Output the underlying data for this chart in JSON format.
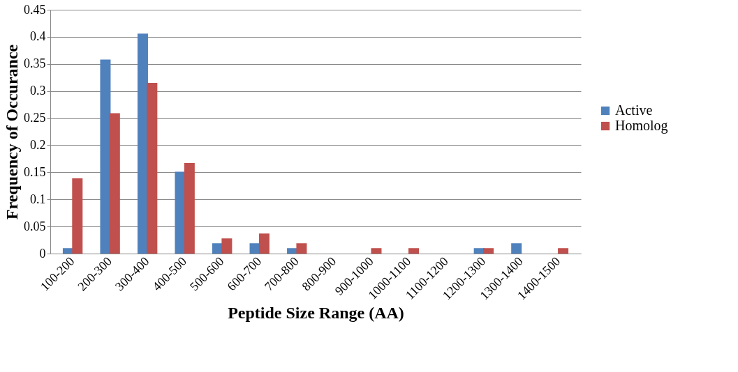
{
  "chart_data": {
    "type": "bar",
    "xlabel": "Peptide Size Range (AA)",
    "ylabel": "Frequency of Occurance",
    "categories": [
      "100-200",
      "200-300",
      "300-400",
      "400-500",
      "500-600",
      "600-700",
      "700-800",
      "800-900",
      "900-1000",
      "1000-1100",
      "1100-1200",
      "1200-1300",
      "1300-1400",
      "1400-1500"
    ],
    "series": [
      {
        "name": "Active",
        "color": "#4f81bd",
        "values": [
          0.01,
          0.358,
          0.406,
          0.151,
          0.019,
          0.019,
          0.01,
          0,
          0,
          0,
          0,
          0.01,
          0.019,
          0
        ]
      },
      {
        "name": "Homolog",
        "color": "#c0504d",
        "values": [
          0.139,
          0.259,
          0.315,
          0.167,
          0.028,
          0.037,
          0.019,
          0,
          0.01,
          0.01,
          0,
          0.01,
          0,
          0.01
        ]
      }
    ],
    "ylim": [
      0,
      0.45
    ],
    "yticks": [
      0,
      0.05,
      0.1,
      0.15,
      0.2,
      0.25,
      0.3,
      0.35,
      0.4,
      0.45
    ],
    "grid": "y",
    "legend": "right"
  }
}
